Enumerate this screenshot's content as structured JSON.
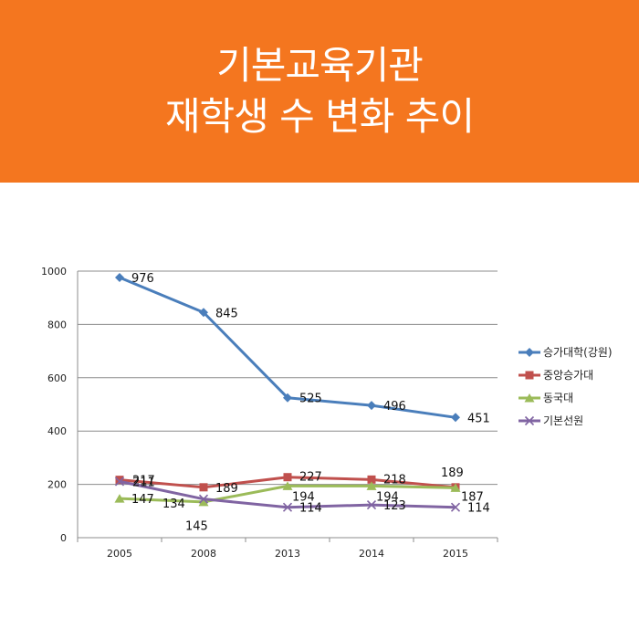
{
  "header": {
    "title_line1": "기본교육기관",
    "title_line2": "재학생 수 변화 추이",
    "bg_color": "#f4761f"
  },
  "chart_data": {
    "type": "line",
    "categories": [
      "2005",
      "2008",
      "2013",
      "2014",
      "2015"
    ],
    "ylim": [
      0,
      1000
    ],
    "yticks": [
      0,
      200,
      400,
      600,
      800,
      1000
    ],
    "grid": true,
    "legend_position": "right",
    "series": [
      {
        "name": "승가대학(강원)",
        "values": [
          976,
          845,
          525,
          496,
          451
        ],
        "color": "#4a7ebb",
        "marker": "diamond"
      },
      {
        "name": "중앙승가대",
        "values": [
          217,
          189,
          227,
          218,
          189
        ],
        "color": "#c0504d",
        "marker": "square"
      },
      {
        "name": "동국대",
        "values": [
          147,
          134,
          194,
          194,
          187
        ],
        "color": "#9bbb59",
        "marker": "triangle"
      },
      {
        "name": "기본선원",
        "values": [
          211,
          145,
          114,
          123,
          114
        ],
        "color": "#8064a2",
        "marker": "x"
      }
    ]
  }
}
